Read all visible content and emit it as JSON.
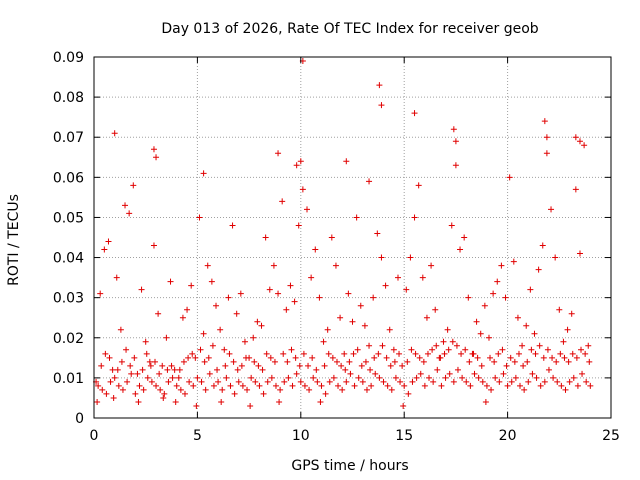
{
  "chart_data": {
    "type": "scatter",
    "title": "Day 013 of 2026, Rate Of TEC Index for receiver geob",
    "xlabel": "GPS time / hours",
    "ylabel": "ROTI / TECUs",
    "xlim": [
      0,
      25
    ],
    "ylim": [
      0,
      0.09
    ],
    "xticks": [
      "0",
      "5",
      "10",
      "15",
      "20",
      "25"
    ],
    "yticks": [
      "0",
      "0.01",
      "0.02",
      "0.03",
      "0.04",
      "0.05",
      "0.06",
      "0.07",
      "0.08",
      "0.09"
    ],
    "grid": true,
    "marker": "plus",
    "color": "#e00000",
    "series": [
      {
        "x": [
          0.1,
          0.3,
          0.5,
          0.7,
          0.9,
          1.1,
          1.3,
          1.5,
          1.7,
          1.9,
          2.1,
          2.3,
          2.5,
          2.7,
          2.9,
          3.1,
          3.3,
          3.5,
          3.7,
          3.9,
          4.1,
          4.3,
          4.5,
          4.7,
          4.9,
          5.1,
          5.3,
          5.5,
          5.7,
          5.9,
          6.1,
          6.3,
          6.5,
          6.7,
          6.9,
          7.1,
          7.3,
          7.5,
          7.7,
          7.9,
          8.1,
          8.3,
          8.5,
          8.7,
          8.9,
          9.1,
          9.3,
          9.5,
          9.7,
          9.9,
          10.1,
          10.3,
          10.5,
          10.7,
          10.9,
          11.1,
          11.3,
          11.5,
          11.7,
          11.9,
          12.1,
          12.3,
          12.5,
          12.7,
          12.9,
          13.1,
          13.3,
          13.5,
          13.7,
          13.9,
          14.1,
          14.3,
          14.5,
          14.7,
          14.9,
          15.1,
          15.3,
          15.5,
          15.7,
          15.9,
          16.1,
          16.3,
          16.5,
          16.7,
          16.9,
          17.1,
          17.3,
          17.5,
          17.7,
          17.9,
          18.1,
          18.3,
          18.5,
          18.7,
          18.9,
          19.1,
          19.3,
          19.5,
          19.7,
          19.9,
          20.1,
          20.3,
          20.5,
          20.7,
          20.9,
          21.1,
          21.3,
          21.5,
          21.7,
          21.9,
          22.1,
          22.3,
          22.5,
          22.7,
          22.9,
          23.1,
          23.3,
          23.5,
          23.7,
          23.9,
          0.2,
          0.4,
          0.6,
          0.8,
          1.0,
          1.2,
          1.4,
          1.6,
          1.8,
          2.0,
          2.2,
          2.4,
          2.6,
          2.8,
          3.0,
          3.2,
          3.4,
          3.6,
          3.8,
          4.0,
          4.2,
          4.4,
          4.6,
          4.8,
          5.0,
          5.2,
          5.4,
          5.6,
          5.8,
          6.0,
          6.2,
          6.4,
          6.6,
          6.8,
          7.0,
          7.2,
          7.4,
          7.6,
          7.8,
          8.0,
          8.2,
          8.4,
          8.6,
          8.8,
          9.0,
          9.2,
          9.4,
          9.6,
          9.8,
          10.0,
          10.2,
          10.4,
          10.6,
          10.8,
          11.0,
          11.2,
          11.4,
          11.6,
          11.8,
          12.0,
          12.2,
          12.4,
          12.6,
          12.8,
          13.0,
          13.2,
          13.4,
          13.6,
          13.8,
          14.0,
          14.2,
          14.4,
          14.6,
          14.8,
          15.0,
          15.2,
          15.4,
          15.6,
          15.8,
          16.0,
          16.2,
          16.4,
          16.6,
          16.8,
          17.0,
          17.2,
          17.4,
          17.6,
          17.8,
          18.0,
          18.2,
          18.4,
          18.6,
          18.8,
          19.0,
          19.2,
          19.4,
          19.6,
          19.8,
          20.0,
          20.2,
          20.4,
          20.6,
          20.8,
          21.0,
          21.2,
          21.4,
          21.6,
          21.8,
          22.0,
          22.2,
          22.4,
          22.6,
          22.8,
          23.0,
          23.2,
          23.4,
          23.6,
          23.8,
          24.0,
          1.0,
          2.9,
          3.0,
          5.3,
          8.9,
          9.8,
          10.0,
          10.1,
          12.2,
          13.3,
          13.8,
          13.9,
          15.5,
          17.4,
          17.5,
          21.8,
          21.9,
          23.3,
          23.5,
          0.15,
          0.35,
          0.55,
          0.75,
          0.95,
          1.15,
          1.35,
          1.55,
          1.75,
          1.95,
          2.15,
          2.35,
          2.55,
          2.75,
          2.95,
          3.15,
          3.35,
          3.55,
          3.75,
          3.95,
          4.15,
          4.35,
          4.55,
          4.75,
          4.95,
          5.15,
          5.35,
          5.55,
          5.75,
          5.95,
          6.15,
          6.35,
          6.55,
          6.75,
          6.95,
          7.15,
          7.35,
          7.55,
          7.75,
          7.95,
          8.15,
          8.35,
          8.55,
          8.75,
          8.95,
          9.15,
          9.35,
          9.55,
          9.75,
          9.95,
          10.15,
          10.35,
          10.55,
          10.75,
          10.95,
          11.15,
          11.35,
          11.55,
          11.75,
          11.95,
          12.15,
          12.35,
          12.55,
          12.75,
          12.95,
          13.15,
          13.35,
          13.55,
          13.75,
          13.95,
          14.15,
          14.35,
          14.55,
          14.75,
          14.95,
          15.15,
          15.35,
          15.55,
          15.75,
          15.95,
          16.15,
          16.35,
          16.55,
          16.75,
          16.95,
          17.15,
          17.35,
          17.55,
          17.75,
          17.95,
          18.15,
          18.35,
          18.55,
          18.75,
          18.95,
          19.15,
          19.35,
          19.55,
          19.75,
          19.95,
          20.15,
          20.35,
          20.55,
          20.75,
          20.95,
          21.15,
          21.35,
          21.55,
          21.75,
          21.95,
          22.15,
          22.35,
          22.55,
          22.75,
          22.95,
          23.15,
          23.35,
          23.55,
          23.75,
          23.95
        ],
        "y": [
          0.009,
          0.031,
          0.042,
          0.044,
          0.012,
          0.035,
          0.022,
          0.053,
          0.051,
          0.058,
          0.011,
          0.032,
          0.019,
          0.014,
          0.043,
          0.026,
          0.013,
          0.02,
          0.034,
          0.012,
          0.01,
          0.025,
          0.027,
          0.033,
          0.015,
          0.05,
          0.021,
          0.038,
          0.034,
          0.028,
          0.022,
          0.017,
          0.03,
          0.048,
          0.026,
          0.031,
          0.019,
          0.015,
          0.02,
          0.024,
          0.023,
          0.045,
          0.032,
          0.038,
          0.031,
          0.054,
          0.027,
          0.033,
          0.029,
          0.048,
          0.057,
          0.052,
          0.035,
          0.042,
          0.03,
          0.019,
          0.022,
          0.045,
          0.038,
          0.025,
          0.016,
          0.031,
          0.024,
          0.05,
          0.028,
          0.023,
          0.018,
          0.03,
          0.046,
          0.04,
          0.033,
          0.022,
          0.017,
          0.035,
          0.013,
          0.032,
          0.04,
          0.05,
          0.058,
          0.035,
          0.025,
          0.038,
          0.027,
          0.015,
          0.019,
          0.022,
          0.048,
          0.063,
          0.042,
          0.045,
          0.03,
          0.016,
          0.024,
          0.021,
          0.028,
          0.02,
          0.031,
          0.034,
          0.038,
          0.03,
          0.06,
          0.039,
          0.025,
          0.018,
          0.023,
          0.032,
          0.021,
          0.037,
          0.043,
          0.066,
          0.052,
          0.04,
          0.027,
          0.019,
          0.022,
          0.026,
          0.057,
          0.041,
          0.068,
          0.018,
          0.008,
          0.007,
          0.006,
          0.009,
          0.01,
          0.008,
          0.007,
          0.009,
          0.011,
          0.006,
          0.008,
          0.007,
          0.01,
          0.009,
          0.008,
          0.007,
          0.006,
          0.009,
          0.01,
          0.008,
          0.007,
          0.006,
          0.009,
          0.008,
          0.01,
          0.009,
          0.007,
          0.011,
          0.008,
          0.009,
          0.007,
          0.01,
          0.008,
          0.006,
          0.009,
          0.008,
          0.007,
          0.01,
          0.009,
          0.008,
          0.006,
          0.009,
          0.01,
          0.008,
          0.007,
          0.009,
          0.01,
          0.008,
          0.011,
          0.009,
          0.008,
          0.007,
          0.01,
          0.009,
          0.008,
          0.006,
          0.009,
          0.01,
          0.008,
          0.007,
          0.009,
          0.011,
          0.008,
          0.01,
          0.009,
          0.007,
          0.008,
          0.011,
          0.01,
          0.009,
          0.008,
          0.007,
          0.01,
          0.009,
          0.008,
          0.006,
          0.009,
          0.01,
          0.011,
          0.008,
          0.01,
          0.009,
          0.012,
          0.008,
          0.01,
          0.011,
          0.009,
          0.012,
          0.01,
          0.009,
          0.008,
          0.011,
          0.01,
          0.009,
          0.008,
          0.007,
          0.01,
          0.009,
          0.011,
          0.008,
          0.009,
          0.01,
          0.008,
          0.007,
          0.009,
          0.011,
          0.01,
          0.008,
          0.009,
          0.012,
          0.01,
          0.009,
          0.008,
          0.007,
          0.009,
          0.01,
          0.008,
          0.011,
          0.009,
          0.008,
          0.071,
          0.067,
          0.065,
          0.061,
          0.066,
          0.063,
          0.064,
          0.089,
          0.064,
          0.059,
          0.083,
          0.078,
          0.076,
          0.072,
          0.069,
          0.074,
          0.07,
          0.07,
          0.069,
          0.004,
          0.013,
          0.016,
          0.015,
          0.005,
          0.012,
          0.014,
          0.017,
          0.013,
          0.015,
          0.004,
          0.012,
          0.016,
          0.013,
          0.014,
          0.011,
          0.005,
          0.012,
          0.013,
          0.004,
          0.012,
          0.014,
          0.015,
          0.016,
          0.003,
          0.017,
          0.014,
          0.015,
          0.018,
          0.012,
          0.004,
          0.013,
          0.016,
          0.014,
          0.012,
          0.013,
          0.015,
          0.003,
          0.014,
          0.013,
          0.012,
          0.016,
          0.015,
          0.014,
          0.004,
          0.016,
          0.014,
          0.017,
          0.015,
          0.013,
          0.016,
          0.013,
          0.015,
          0.012,
          0.004,
          0.013,
          0.016,
          0.015,
          0.014,
          0.013,
          0.012,
          0.014,
          0.016,
          0.017,
          0.013,
          0.014,
          0.012,
          0.015,
          0.016,
          0.018,
          0.015,
          0.013,
          0.014,
          0.016,
          0.003,
          0.014,
          0.017,
          0.016,
          0.015,
          0.014,
          0.016,
          0.017,
          0.018,
          0.015,
          0.016,
          0.017,
          0.019,
          0.018,
          0.016,
          0.017,
          0.014,
          0.016,
          0.015,
          0.013,
          0.004,
          0.015,
          0.014,
          0.016,
          0.017,
          0.013,
          0.015,
          0.014,
          0.016,
          0.013,
          0.014,
          0.017,
          0.016,
          0.018,
          0.015,
          0.017,
          0.015,
          0.014,
          0.016,
          0.015,
          0.014,
          0.016,
          0.015,
          0.017,
          0.016,
          0.014
        ]
      }
    ]
  }
}
